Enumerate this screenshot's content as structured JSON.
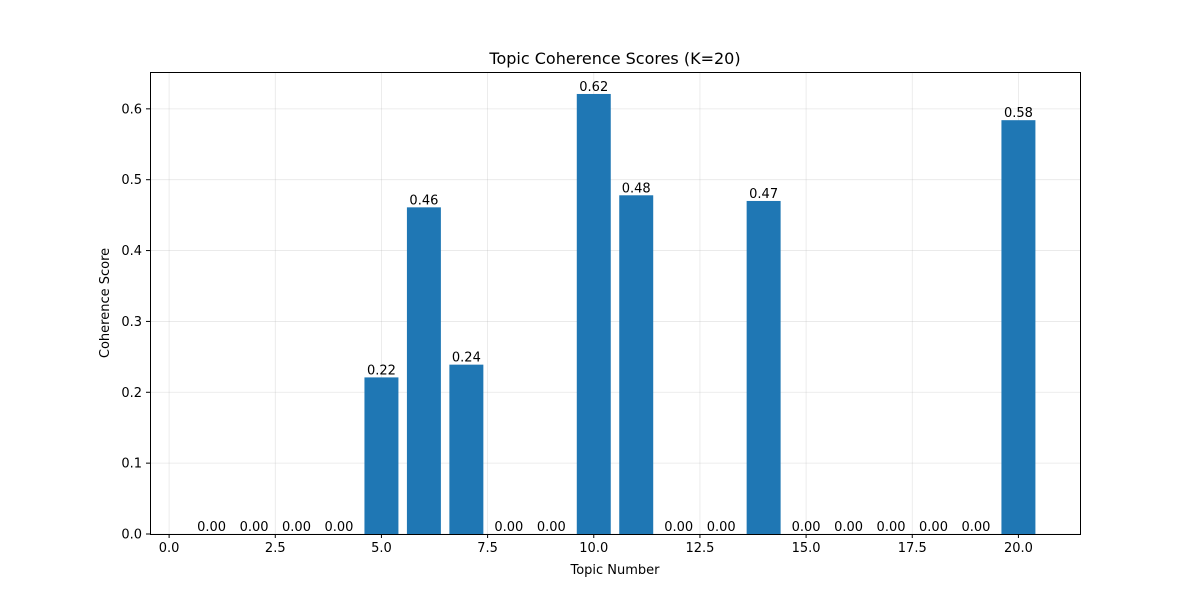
{
  "chart_data": {
    "type": "bar",
    "title": "Topic Coherence Scores (K=20)",
    "xlabel": "Topic Number",
    "ylabel": "Coherence Score",
    "x": [
      1,
      2,
      3,
      4,
      5,
      6,
      7,
      8,
      9,
      10,
      11,
      12,
      13,
      14,
      15,
      16,
      17,
      18,
      19,
      20
    ],
    "values": [
      0,
      0,
      0,
      0,
      0.221,
      0.461,
      0.239,
      0,
      0,
      0.621,
      0.478,
      0,
      0,
      0.47,
      0,
      0,
      0,
      0,
      0,
      0.584
    ],
    "value_labels": [
      "0.00",
      "0.00",
      "0.00",
      "0.00",
      "0.22",
      "0.46",
      "0.24",
      "0.00",
      "0.00",
      "0.62",
      "0.48",
      "0.00",
      "0.00",
      "0.47",
      "0.00",
      "0.00",
      "0.00",
      "0.00",
      "0.00",
      "0.58"
    ],
    "bar_width": 0.8,
    "xlim": [
      -0.45,
      21.45
    ],
    "ylim": [
      0,
      0.652
    ],
    "xticks": [
      0.0,
      2.5,
      5.0,
      7.5,
      10.0,
      12.5,
      15.0,
      17.5,
      20.0
    ],
    "xtick_labels": [
      "0.0",
      "2.5",
      "5.0",
      "7.5",
      "10.0",
      "12.5",
      "15.0",
      "17.5",
      "20.0"
    ],
    "yticks": [
      0.0,
      0.1,
      0.2,
      0.3,
      0.4,
      0.5,
      0.6
    ],
    "ytick_labels": [
      "0.0",
      "0.1",
      "0.2",
      "0.3",
      "0.4",
      "0.5",
      "0.6"
    ],
    "grid": true,
    "bar_color": "#1f77b4"
  }
}
